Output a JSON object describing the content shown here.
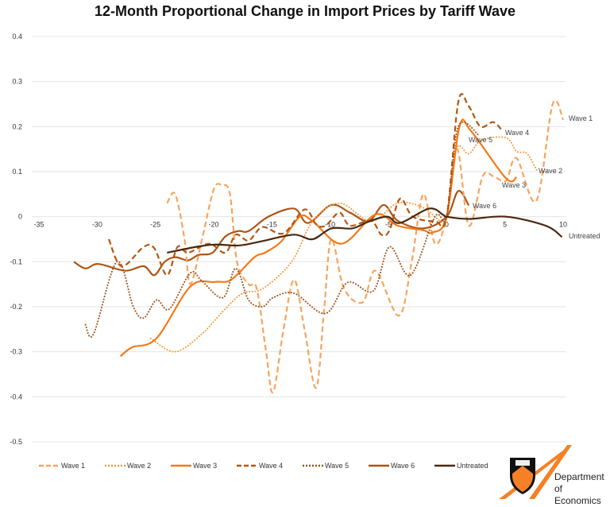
{
  "chart_data": {
    "type": "line",
    "title": "12-Month Proportional Change in Import Prices by Tariff Wave",
    "xlabel": "",
    "ylabel": "",
    "xlim": [
      -35,
      10
    ],
    "ylim": [
      -0.5,
      0.4
    ],
    "x_ticks": [
      "-35",
      "-30",
      "-25",
      "-20",
      "-15",
      "-10",
      "-5",
      "0",
      "5",
      "10"
    ],
    "y_ticks": [
      "0.4",
      "0.3",
      "0.2",
      "0.1",
      "0",
      "-0.1",
      "-0.2",
      "-0.3",
      "-0.4",
      "-0.5"
    ],
    "grid": true,
    "legend": "bottom",
    "series": [
      {
        "name": "Wave 1",
        "color": "#F7A45E",
        "style": "dashed",
        "end_label": "Wave 1",
        "points": [
          [
            -24,
            0.03
          ],
          [
            -23.3,
            0.05
          ],
          [
            -22.5,
            -0.05
          ],
          [
            -22,
            -0.15
          ],
          [
            -21,
            -0.05
          ],
          [
            -20,
            0.06
          ],
          [
            -19.3,
            0.07
          ],
          [
            -18.6,
            0.05
          ],
          [
            -18,
            -0.1
          ],
          [
            -17,
            -0.15
          ],
          [
            -16.3,
            -0.16
          ],
          [
            -15.5,
            -0.3
          ],
          [
            -14.9,
            -0.39
          ],
          [
            -14,
            -0.25
          ],
          [
            -13.1,
            -0.14
          ],
          [
            -12.2,
            -0.25
          ],
          [
            -11.2,
            -0.38
          ],
          [
            -10.5,
            -0.2
          ],
          [
            -9.9,
            -0.05
          ],
          [
            -8.8,
            -0.16
          ],
          [
            -7.2,
            -0.19
          ],
          [
            -6.1,
            -0.12
          ],
          [
            -4.1,
            -0.22
          ],
          [
            -3,
            -0.1
          ],
          [
            -2,
            0.05
          ],
          [
            -1,
            -0.06
          ],
          [
            0,
            0
          ],
          [
            0.9,
            0.15
          ],
          [
            1.9,
            -0.02
          ],
          [
            3.1,
            0.09
          ],
          [
            4,
            0.09
          ],
          [
            5.1,
            0.08
          ],
          [
            6,
            0.13
          ],
          [
            7.7,
            0.035
          ],
          [
            9.1,
            0.25
          ],
          [
            10,
            0.215
          ]
        ]
      },
      {
        "name": "Wave 2",
        "color": "#F59A3E",
        "style": "dotted",
        "end_label": "Wave 2",
        "points": [
          [
            -25.4,
            -0.27
          ],
          [
            -23.3,
            -0.3
          ],
          [
            -21,
            -0.26
          ],
          [
            -19.2,
            -0.21
          ],
          [
            -17.5,
            -0.17
          ],
          [
            -15.8,
            -0.16
          ],
          [
            -13.3,
            -0.1
          ],
          [
            -11.5,
            -0.01
          ],
          [
            -9.2,
            0.03
          ],
          [
            -6.5,
            -0.01
          ],
          [
            -4.2,
            0.03
          ],
          [
            -2,
            0.02
          ],
          [
            -0.3,
            -0.015
          ],
          [
            0,
            0
          ],
          [
            0.8,
            0.15
          ],
          [
            1.9,
            0.14
          ],
          [
            3,
            0.17
          ],
          [
            5.1,
            0.175
          ],
          [
            6,
            0.145
          ],
          [
            6.9,
            0.14
          ],
          [
            7.8,
            0.1
          ]
        ]
      },
      {
        "name": "Wave 3",
        "color": "#F27A18",
        "style": "solid",
        "end_label": "Wave 3",
        "points": [
          [
            -28,
            -0.31
          ],
          [
            -27,
            -0.29
          ],
          [
            -24.9,
            -0.27
          ],
          [
            -22,
            -0.155
          ],
          [
            -19.9,
            -0.145
          ],
          [
            -18.5,
            -0.14
          ],
          [
            -16.5,
            -0.09
          ],
          [
            -15.6,
            -0.08
          ],
          [
            -14.2,
            -0.055
          ],
          [
            -12.6,
            0
          ],
          [
            -11.5,
            -0.01
          ],
          [
            -9,
            -0.06
          ],
          [
            -6.1,
            0.005
          ],
          [
            -4.2,
            -0.02
          ],
          [
            -2,
            -0.03
          ],
          [
            -1.2,
            -0.035
          ],
          [
            0,
            0
          ],
          [
            1.1,
            0.2
          ],
          [
            2.1,
            0.19
          ],
          [
            5.1,
            0.085
          ],
          [
            6,
            0.088
          ]
        ]
      },
      {
        "name": "Wave 4",
        "color": "#B5560F",
        "style": "dashed",
        "end_label": "Wave 4",
        "points": [
          [
            -29,
            -0.05
          ],
          [
            -27.9,
            -0.11
          ],
          [
            -26,
            -0.067
          ],
          [
            -25.1,
            -0.07
          ],
          [
            -24,
            -0.13
          ],
          [
            -23.1,
            -0.067
          ],
          [
            -22.2,
            -0.08
          ],
          [
            -20.4,
            -0.06
          ],
          [
            -19,
            -0.08
          ],
          [
            -18.1,
            -0.04
          ],
          [
            -17,
            -0.053
          ],
          [
            -15.8,
            -0.023
          ],
          [
            -14,
            -0.037
          ],
          [
            -12.2,
            0.016
          ],
          [
            -11.2,
            -0.017
          ],
          [
            -10.4,
            -0.02
          ],
          [
            -9.2,
            0.009
          ],
          [
            -8.3,
            -0.02
          ],
          [
            -6.5,
            -0.009
          ],
          [
            -5.6,
            -0.04
          ],
          [
            -4.9,
            -0.03
          ],
          [
            -4,
            0.04
          ],
          [
            -2.9,
            0
          ],
          [
            -1,
            -0.01
          ],
          [
            0,
            0
          ],
          [
            1,
            0.255
          ],
          [
            1.9,
            0.245
          ],
          [
            2.9,
            0.2
          ],
          [
            4,
            0.21
          ],
          [
            4.8,
            0.19
          ]
        ]
      },
      {
        "name": "Wave 5",
        "color": "#9E4F16",
        "style": "dotted",
        "end_label": "Wave 5",
        "points": [
          [
            -31,
            -0.24
          ],
          [
            -30.3,
            -0.26
          ],
          [
            -28.3,
            -0.1
          ],
          [
            -26.9,
            -0.2
          ],
          [
            -26,
            -0.225
          ],
          [
            -24.9,
            -0.185
          ],
          [
            -23.8,
            -0.205
          ],
          [
            -22,
            -0.125
          ],
          [
            -21,
            -0.143
          ],
          [
            -19.2,
            -0.18
          ],
          [
            -18.1,
            -0.115
          ],
          [
            -17,
            -0.185
          ],
          [
            -15.8,
            -0.2
          ],
          [
            -14.9,
            -0.18
          ],
          [
            -13.1,
            -0.17
          ],
          [
            -10.4,
            -0.215
          ],
          [
            -8.5,
            -0.146
          ],
          [
            -6.3,
            -0.165
          ],
          [
            -4.9,
            -0.067
          ],
          [
            -3.1,
            -0.13
          ],
          [
            -1,
            0
          ],
          [
            0,
            0
          ],
          [
            1,
            0.2
          ],
          [
            2.8,
            0.18
          ]
        ]
      },
      {
        "name": "Wave 6",
        "color": "#AE5516",
        "style": "solid",
        "end_label": "Wave 6",
        "points": [
          [
            -32,
            -0.1
          ],
          [
            -31,
            -0.115
          ],
          [
            -29.9,
            -0.105
          ],
          [
            -27.6,
            -0.12
          ],
          [
            -26,
            -0.11
          ],
          [
            -25.1,
            -0.13
          ],
          [
            -24.2,
            -0.1
          ],
          [
            -23.3,
            -0.09
          ],
          [
            -22.2,
            -0.097
          ],
          [
            -21.3,
            -0.085
          ],
          [
            -20.1,
            -0.08
          ],
          [
            -19,
            -0.044
          ],
          [
            -17.9,
            -0.032
          ],
          [
            -17,
            -0.032
          ],
          [
            -15.3,
            0
          ],
          [
            -13.1,
            0.018
          ],
          [
            -11.9,
            -0.014
          ],
          [
            -9.9,
            0.026
          ],
          [
            -8.3,
            0.009
          ],
          [
            -6.7,
            -0.01
          ],
          [
            -5.4,
            0.026
          ],
          [
            -4.2,
            -0.009
          ],
          [
            -2,
            -0.026
          ],
          [
            0,
            0
          ],
          [
            1,
            0.057
          ],
          [
            1.9,
            0.025
          ]
        ]
      },
      {
        "name": "Untreated",
        "color": "#4A2810",
        "style": "solid",
        "end_label": "Untreated",
        "points": [
          [
            -24,
            -0.08
          ],
          [
            -21.5,
            -0.067
          ],
          [
            -19.9,
            -0.062
          ],
          [
            -17.9,
            -0.064
          ],
          [
            -16.5,
            -0.058
          ],
          [
            -15.6,
            -0.053
          ],
          [
            -13.1,
            -0.04
          ],
          [
            -11.5,
            -0.05
          ],
          [
            -9.9,
            -0.026
          ],
          [
            -8.1,
            -0.026
          ],
          [
            -6.7,
            -0.011
          ],
          [
            -5.1,
            0
          ],
          [
            -4,
            -0.014
          ],
          [
            -1.5,
            0.018
          ],
          [
            -0.3,
            0.004
          ],
          [
            0,
            0
          ],
          [
            1.9,
            -0.005
          ],
          [
            5.1,
            0
          ],
          [
            8.5,
            -0.02
          ],
          [
            9.9,
            -0.045
          ]
        ]
      }
    ]
  },
  "logo": {
    "line1": "Department",
    "line2": "of Economics"
  }
}
